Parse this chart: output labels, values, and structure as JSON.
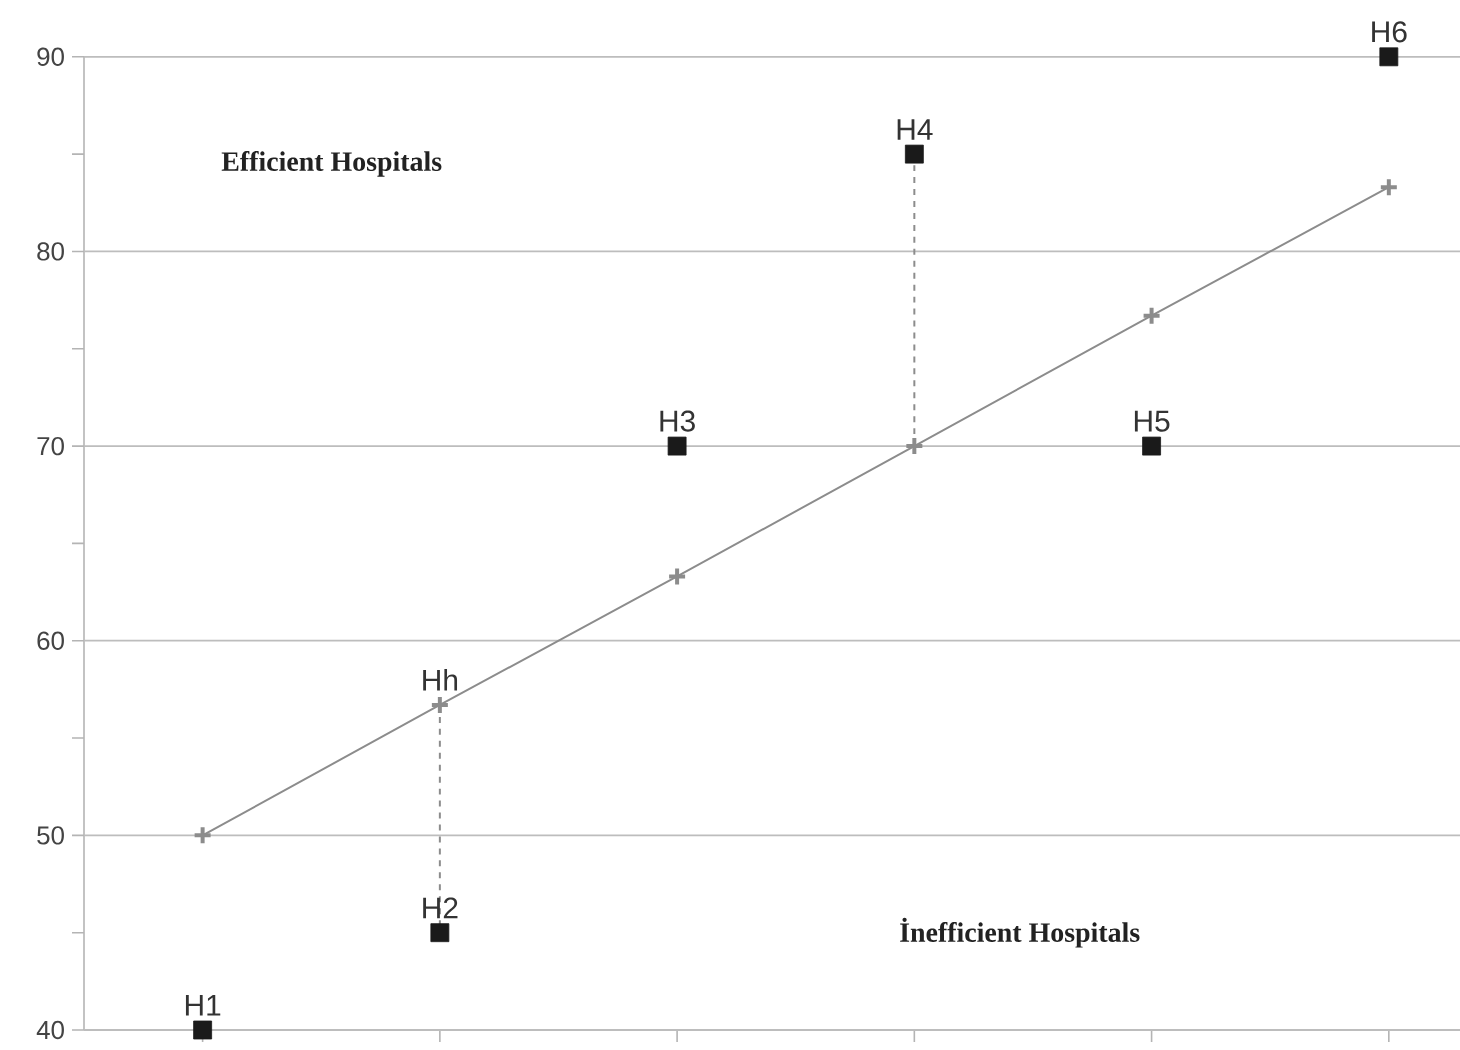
{
  "chart_data": {
    "type": "scatter",
    "categories": [
      null,
      null,
      null,
      null,
      null,
      null
    ],
    "ylim": [
      40,
      90
    ],
    "yticks": [
      40,
      {
        "value": 45,
        "label": null
      },
      50,
      {
        "value": 55,
        "label": null
      },
      60,
      {
        "value": 65,
        "label": null
      },
      70,
      {
        "value": 75,
        "label": null
      },
      80,
      {
        "value": 85,
        "label": null
      },
      90
    ],
    "grid": "y",
    "tick_labels": "y",
    "series": [
      {
        "type": "line",
        "color": "#8c8c8c",
        "marker": "cross",
        "line_style": "solid",
        "values": [
          50,
          56.7,
          63.3,
          70,
          76.7,
          83.3
        ],
        "value_labels": [
          null,
          "Hh",
          null,
          null,
          null,
          null
        ]
      },
      {
        "color": "#1a1a1a",
        "marker": "square",
        "values": [
          40,
          45,
          70,
          85,
          70,
          90
        ],
        "value_labels": [
          "H1",
          "H2",
          "H3",
          "H4",
          "H5",
          "H6"
        ]
      }
    ],
    "annotations": [
      "Efficient Hospitals",
      "İnefficient Hospitals"
    ]
  }
}
